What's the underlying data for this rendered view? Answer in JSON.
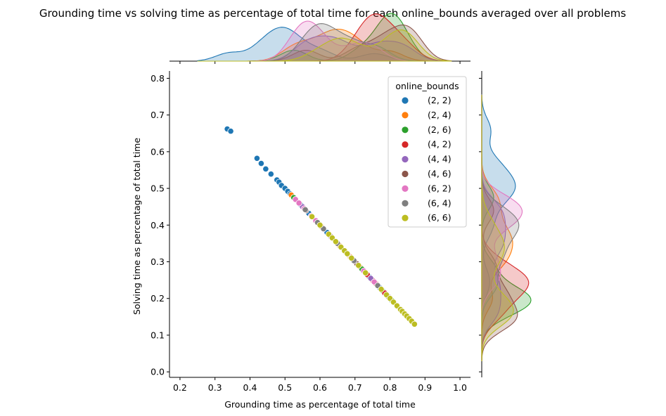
{
  "chart_data": {
    "type": "scatter",
    "title": "Grounding time vs solving time as percentage of total time for each online_bounds averaged over all problems",
    "xlabel": "Grounding time as percentage of total time",
    "ylabel": "Solving time as percentage of total time",
    "xlim": [
      0.17,
      1.03
    ],
    "ylim": [
      -0.015,
      0.82
    ],
    "xticks": [
      "0.2",
      "0.3",
      "0.4",
      "0.5",
      "0.6",
      "0.7",
      "0.8",
      "0.9",
      "1.0"
    ],
    "yticks": [
      "0.0",
      "0.1",
      "0.2",
      "0.3",
      "0.4",
      "0.5",
      "0.6",
      "0.7",
      "0.8"
    ],
    "legend": {
      "title": "online_bounds",
      "placement": "upper-right"
    },
    "marginals": {
      "top": "kde of grounding time per series",
      "right": "kde of solving time per series"
    },
    "series": [
      {
        "name": "(2, 2)",
        "color": "#1f77b4",
        "points": [
          [
            0.335,
            0.662
          ],
          [
            0.345,
            0.656
          ],
          [
            0.42,
            0.582
          ],
          [
            0.432,
            0.568
          ],
          [
            0.445,
            0.553
          ],
          [
            0.46,
            0.539
          ],
          [
            0.477,
            0.523
          ],
          [
            0.483,
            0.517
          ],
          [
            0.49,
            0.508
          ],
          [
            0.5,
            0.5
          ],
          [
            0.508,
            0.492
          ],
          [
            0.515,
            0.485
          ],
          [
            0.525,
            0.475
          ],
          [
            0.545,
            0.455
          ],
          [
            0.568,
            0.432
          ],
          [
            0.6,
            0.4
          ],
          [
            0.62,
            0.38
          ],
          [
            0.74,
            0.26
          ],
          [
            0.77,
            0.23
          ]
        ]
      },
      {
        "name": "(2, 4)",
        "color": "#ff7f0e",
        "points": [
          [
            0.518,
            0.482
          ],
          [
            0.56,
            0.44
          ],
          [
            0.605,
            0.395
          ],
          [
            0.635,
            0.365
          ],
          [
            0.655,
            0.345
          ],
          [
            0.685,
            0.315
          ],
          [
            0.715,
            0.285
          ],
          [
            0.8,
            0.2
          ]
        ]
      },
      {
        "name": "(2, 6)",
        "color": "#2ca02c",
        "points": [
          [
            0.525,
            0.475
          ],
          [
            0.72,
            0.28
          ],
          [
            0.78,
            0.22
          ],
          [
            0.79,
            0.21
          ],
          [
            0.805,
            0.195
          ],
          [
            0.82,
            0.18
          ],
          [
            0.84,
            0.16
          ]
        ]
      },
      {
        "name": "(4, 2)",
        "color": "#d62728",
        "points": [
          [
            0.7,
            0.3
          ],
          [
            0.735,
            0.265
          ],
          [
            0.75,
            0.25
          ],
          [
            0.76,
            0.24
          ],
          [
            0.785,
            0.215
          ],
          [
            0.81,
            0.19
          ],
          [
            0.85,
            0.15
          ]
        ]
      },
      {
        "name": "(4, 4)",
        "color": "#9467bd",
        "points": [
          [
            0.55,
            0.45
          ],
          [
            0.59,
            0.41
          ],
          [
            0.63,
            0.37
          ],
          [
            0.67,
            0.33
          ],
          [
            0.745,
            0.255
          ],
          [
            0.795,
            0.205
          ],
          [
            0.845,
            0.155
          ]
        ]
      },
      {
        "name": "(4, 6)",
        "color": "#8c564b",
        "points": [
          [
            0.56,
            0.44
          ],
          [
            0.705,
            0.295
          ],
          [
            0.765,
            0.235
          ],
          [
            0.8,
            0.2
          ],
          [
            0.83,
            0.17
          ],
          [
            0.86,
            0.14
          ],
          [
            0.868,
            0.132
          ]
        ]
      },
      {
        "name": "(6, 2)",
        "color": "#e377c2",
        "points": [
          [
            0.53,
            0.47
          ],
          [
            0.54,
            0.46
          ],
          [
            0.555,
            0.445
          ],
          [
            0.575,
            0.425
          ],
          [
            0.588,
            0.412
          ],
          [
            0.61,
            0.39
          ],
          [
            0.68,
            0.32
          ],
          [
            0.725,
            0.275
          ],
          [
            0.755,
            0.245
          ]
        ]
      },
      {
        "name": "(6, 4)",
        "color": "#7f7f7f",
        "points": [
          [
            0.558,
            0.442
          ],
          [
            0.593,
            0.407
          ],
          [
            0.61,
            0.39
          ],
          [
            0.65,
            0.35
          ],
          [
            0.697,
            0.303
          ],
          [
            0.765,
            0.235
          ]
        ]
      },
      {
        "name": "(6, 6)",
        "color": "#bcbd22",
        "points": [
          [
            0.577,
            0.423
          ],
          [
            0.6,
            0.4
          ],
          [
            0.625,
            0.375
          ],
          [
            0.635,
            0.365
          ],
          [
            0.645,
            0.355
          ],
          [
            0.66,
            0.34
          ],
          [
            0.67,
            0.33
          ],
          [
            0.678,
            0.322
          ],
          [
            0.69,
            0.31
          ],
          [
            0.71,
            0.29
          ],
          [
            0.73,
            0.27
          ],
          [
            0.775,
            0.225
          ],
          [
            0.79,
            0.21
          ],
          [
            0.8,
            0.2
          ],
          [
            0.81,
            0.19
          ],
          [
            0.82,
            0.18
          ],
          [
            0.83,
            0.17
          ],
          [
            0.835,
            0.165
          ],
          [
            0.842,
            0.158
          ],
          [
            0.848,
            0.152
          ],
          [
            0.855,
            0.145
          ],
          [
            0.862,
            0.138
          ],
          [
            0.87,
            0.13
          ]
        ]
      }
    ]
  }
}
